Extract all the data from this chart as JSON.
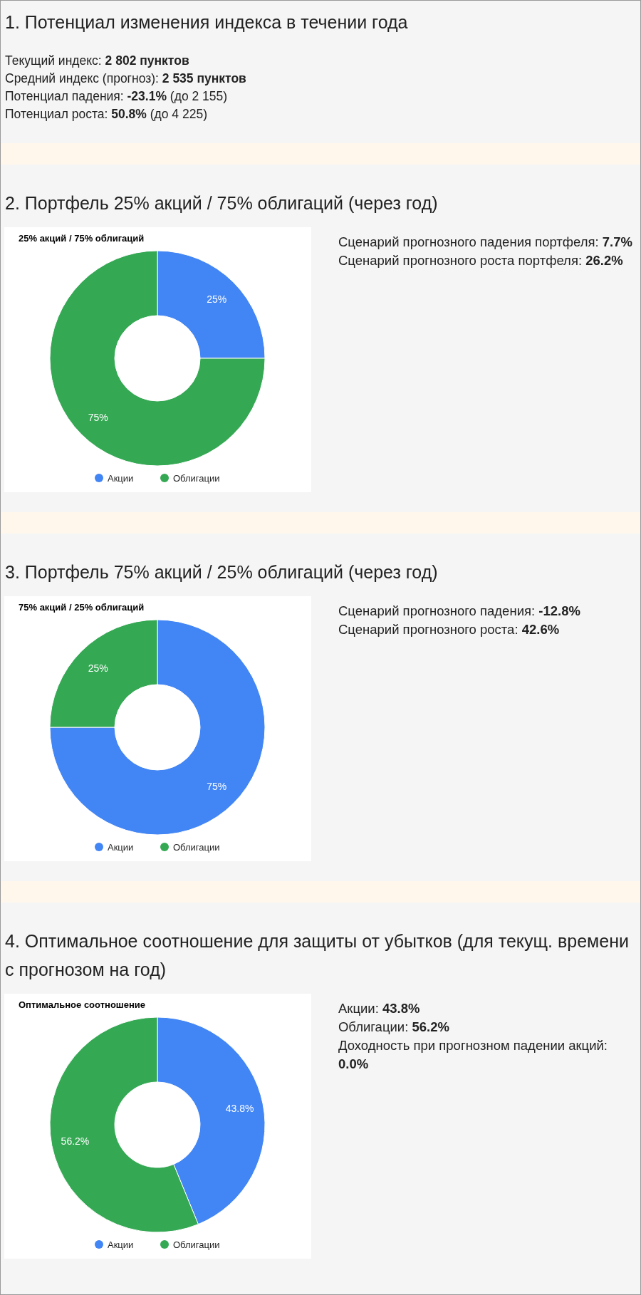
{
  "chart_data": [
    {
      "type": "other",
      "title": "1. Потенциал изменения индекса в течении года",
      "annotations": [
        "Текущий индекс: 2 802 пунктов",
        "Средний индекс (прогноз): 2 535 пунктов",
        "Потенциал падения: -23.1% (до 2 155)",
        "Потенциал роста: 50.8% (до 4 225)"
      ]
    },
    {
      "type": "donut",
      "subtitle": "2. Портфель 25% акций / 75% облигаций (через год)",
      "title": "25% акций / 75% облигаций",
      "categories": [
        "Акции",
        "Облигации"
      ],
      "values": [
        25,
        75
      ],
      "colors": [
        "#4285f4",
        "#34a853"
      ],
      "value_labels": [
        "25%",
        "75%"
      ],
      "legend": "bottom",
      "annotations": [
        "Сценарий прогнозного падения портфеля: 7.7%",
        "Сценарий прогнозного роста портфеля: 26.2%"
      ]
    },
    {
      "type": "donut",
      "subtitle": "3. Портфель 75% акций / 25% облигаций (через год)",
      "title": "75% акций / 25% облигаций",
      "categories": [
        "Акции",
        "Облигации"
      ],
      "values": [
        75,
        25
      ],
      "colors": [
        "#4285f4",
        "#34a853"
      ],
      "value_labels": [
        "75%",
        "25%"
      ],
      "legend": "bottom",
      "annotations": [
        "Сценарий прогнозного падения: -12.8%",
        "Сценарий прогнозного роста: 42.6%"
      ]
    },
    {
      "type": "donut",
      "subtitle": "4. Оптимальное соотношение для защиты от убытков (для текущ. времени с прогнозом на год)",
      "title": "Оптимальное соотношение",
      "categories": [
        "Акции",
        "Облигации"
      ],
      "values": [
        43.8,
        56.2
      ],
      "colors": [
        "#4285f4",
        "#34a853"
      ],
      "value_labels": [
        "43.8%",
        "56.2%"
      ],
      "legend": "bottom",
      "annotations": [
        "Акции: 43.8%",
        "Облигации: 56.2%",
        "Доходность при прогнозном падении акций: 0.0%"
      ]
    }
  ]
}
